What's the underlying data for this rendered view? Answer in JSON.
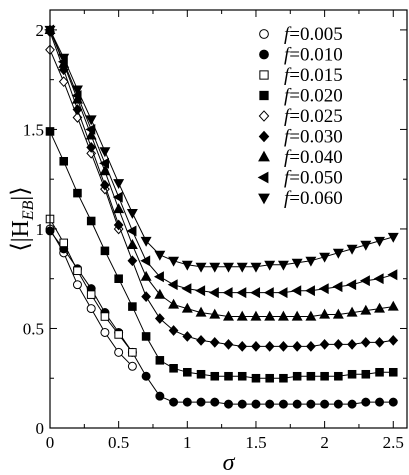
{
  "chart_data": {
    "type": "scatter",
    "title": "",
    "xlabel": "σ",
    "ylabel_main": "⟨|H",
    "ylabel_sub": "EB",
    "ylabel_close": "|⟩",
    "xlim": [
      0,
      2.6
    ],
    "ylim": [
      0,
      2.1
    ],
    "x_ticks": [
      0,
      0.5,
      1,
      1.5,
      2,
      2.5
    ],
    "x_tick_labels": [
      "0",
      "0.5",
      "1",
      "1.5",
      "2",
      "2.5"
    ],
    "y_ticks": [
      0,
      0.5,
      1,
      1.5,
      2
    ],
    "y_tick_labels": [
      "0",
      "0.5",
      "1",
      "1.5",
      "2"
    ],
    "grid": false,
    "legend_position": "top-right",
    "series": [
      {
        "name": "0.005",
        "marker": "circle-open",
        "x": [
          0,
          0.1,
          0.2,
          0.3,
          0.4,
          0.5,
          0.6
        ],
        "y": [
          1.0,
          0.88,
          0.72,
          0.6,
          0.48,
          0.38,
          0.31
        ]
      },
      {
        "name": "0.010",
        "marker": "circle-filled",
        "x": [
          0,
          0.1,
          0.2,
          0.3,
          0.4,
          0.5,
          0.6,
          0.7,
          0.8,
          0.9,
          1.0,
          1.1,
          1.2,
          1.3,
          1.4,
          1.5,
          1.6,
          1.7,
          1.8,
          1.9,
          2.0,
          2.1,
          2.2,
          2.3,
          2.4,
          2.5
        ],
        "y": [
          0.99,
          0.9,
          0.8,
          0.7,
          0.58,
          0.48,
          0.38,
          0.26,
          0.16,
          0.13,
          0.13,
          0.13,
          0.13,
          0.12,
          0.12,
          0.12,
          0.12,
          0.12,
          0.12,
          0.12,
          0.12,
          0.12,
          0.12,
          0.13,
          0.13,
          0.13
        ]
      },
      {
        "name": "0.015",
        "marker": "square-open",
        "x": [
          0,
          0.1,
          0.2,
          0.3,
          0.4,
          0.5,
          0.6
        ],
        "y": [
          1.05,
          0.93,
          0.79,
          0.67,
          0.56,
          0.47,
          0.38
        ]
      },
      {
        "name": "0.020",
        "marker": "square-filled",
        "x": [
          0,
          0.1,
          0.2,
          0.3,
          0.4,
          0.5,
          0.6,
          0.7,
          0.8,
          0.9,
          1.0,
          1.1,
          1.2,
          1.3,
          1.4,
          1.5,
          1.6,
          1.7,
          1.8,
          1.9,
          2.0,
          2.1,
          2.2,
          2.3,
          2.4,
          2.5
        ],
        "y": [
          1.49,
          1.34,
          1.18,
          1.04,
          0.89,
          0.75,
          0.61,
          0.46,
          0.34,
          0.3,
          0.28,
          0.27,
          0.26,
          0.26,
          0.26,
          0.25,
          0.25,
          0.25,
          0.26,
          0.26,
          0.26,
          0.26,
          0.27,
          0.27,
          0.28,
          0.28
        ]
      },
      {
        "name": "0.025",
        "marker": "diamond-open",
        "x": [
          0,
          0.1,
          0.2,
          0.3,
          0.4,
          0.5
        ],
        "y": [
          1.9,
          1.74,
          1.56,
          1.38,
          1.2,
          1.0
        ]
      },
      {
        "name": "0.030",
        "marker": "diamond-filled",
        "x": [
          0,
          0.1,
          0.2,
          0.3,
          0.4,
          0.5,
          0.6,
          0.7,
          0.8,
          0.9,
          1.0,
          1.1,
          1.2,
          1.3,
          1.4,
          1.5,
          1.6,
          1.7,
          1.8,
          1.9,
          2.0,
          2.1,
          2.2,
          2.3,
          2.4,
          2.5
        ],
        "y": [
          1.99,
          1.8,
          1.6,
          1.41,
          1.22,
          1.02,
          0.84,
          0.66,
          0.55,
          0.49,
          0.46,
          0.44,
          0.43,
          0.42,
          0.41,
          0.41,
          0.41,
          0.41,
          0.41,
          0.41,
          0.42,
          0.42,
          0.42,
          0.43,
          0.43,
          0.44
        ]
      },
      {
        "name": "0.040",
        "marker": "triangle-up",
        "x": [
          0,
          0.1,
          0.2,
          0.3,
          0.4,
          0.5,
          0.6,
          0.7,
          0.8,
          0.9,
          1.0,
          1.1,
          1.2,
          1.3,
          1.4,
          1.5,
          1.6,
          1.7,
          1.8,
          1.9,
          2.0,
          2.1,
          2.2,
          2.3,
          2.4,
          2.5
        ],
        "y": [
          2.0,
          1.83,
          1.65,
          1.47,
          1.29,
          1.1,
          0.92,
          0.76,
          0.67,
          0.62,
          0.6,
          0.58,
          0.57,
          0.56,
          0.56,
          0.56,
          0.56,
          0.56,
          0.56,
          0.56,
          0.57,
          0.57,
          0.58,
          0.59,
          0.6,
          0.61
        ]
      },
      {
        "name": "0.050",
        "marker": "triangle-left",
        "x": [
          0,
          0.1,
          0.2,
          0.3,
          0.4,
          0.5,
          0.6,
          0.7,
          0.8,
          0.9,
          1.0,
          1.1,
          1.2,
          1.3,
          1.4,
          1.5,
          1.6,
          1.7,
          1.8,
          1.9,
          2.0,
          2.1,
          2.2,
          2.3,
          2.4,
          2.5
        ],
        "y": [
          2.0,
          1.84,
          1.67,
          1.5,
          1.33,
          1.16,
          0.99,
          0.84,
          0.76,
          0.72,
          0.7,
          0.69,
          0.68,
          0.68,
          0.68,
          0.68,
          0.68,
          0.68,
          0.69,
          0.69,
          0.7,
          0.71,
          0.72,
          0.74,
          0.75,
          0.77
        ]
      },
      {
        "name": "0.060",
        "marker": "triangle-down",
        "x": [
          0,
          0.1,
          0.2,
          0.3,
          0.4,
          0.5,
          0.6,
          0.7,
          0.8,
          0.9,
          1.0,
          1.1,
          1.2,
          1.3,
          1.4,
          1.5,
          1.6,
          1.7,
          1.8,
          1.9,
          2.0,
          2.1,
          2.2,
          2.3,
          2.4,
          2.5
        ],
        "y": [
          2.0,
          1.86,
          1.7,
          1.55,
          1.39,
          1.23,
          1.08,
          0.94,
          0.87,
          0.84,
          0.82,
          0.81,
          0.81,
          0.81,
          0.81,
          0.81,
          0.82,
          0.82,
          0.83,
          0.84,
          0.86,
          0.88,
          0.9,
          0.92,
          0.94,
          0.96
        ]
      }
    ],
    "legend_prefix": "f",
    "legend_eq": "="
  }
}
